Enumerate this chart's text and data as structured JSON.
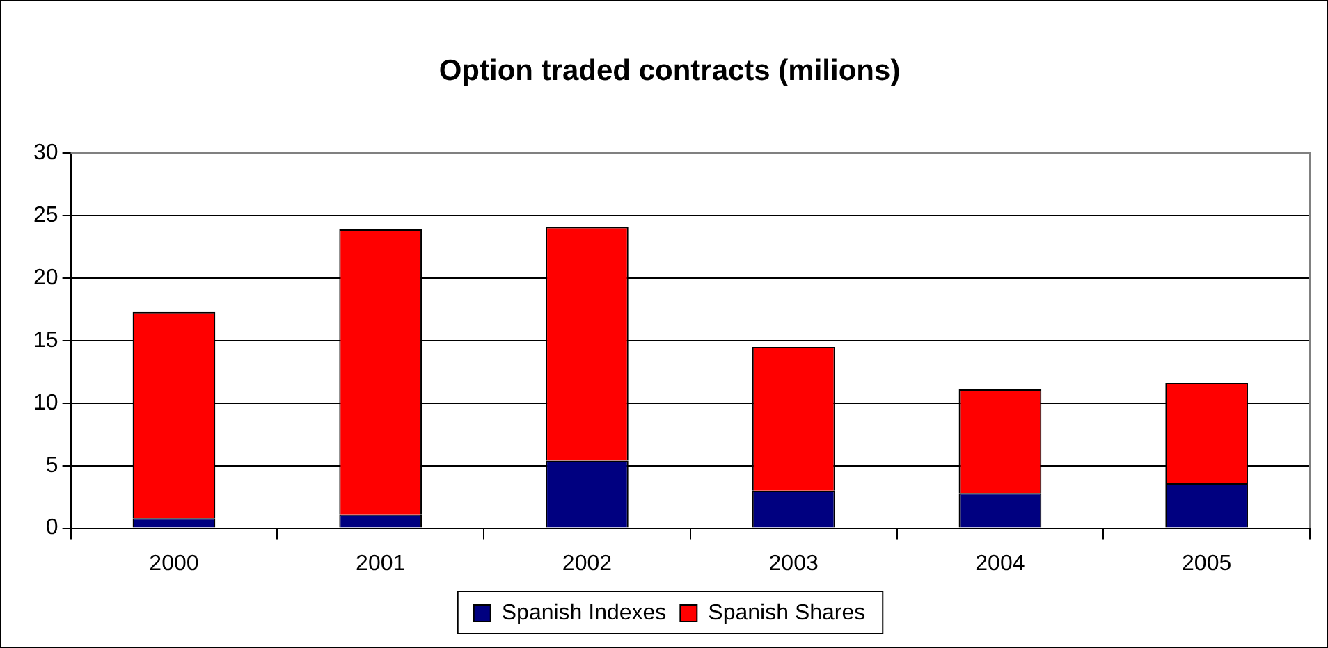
{
  "chart_data": {
    "type": "bar",
    "title": "Option traded contracts (milions)",
    "categories": [
      "2000",
      "2001",
      "2002",
      "2003",
      "2004",
      "2005"
    ],
    "stacked": true,
    "series": [
      {
        "name": "Spanish Indexes",
        "color": "#000080",
        "values": [
          0.8,
          1.1,
          5.4,
          3.0,
          2.8,
          3.6
        ]
      },
      {
        "name": "Spanish Shares",
        "color": "#ff0000",
        "values": [
          16.5,
          22.8,
          18.7,
          11.5,
          8.3,
          8.0
        ]
      }
    ],
    "ylim": [
      0,
      30
    ],
    "yticks": [
      0,
      5,
      10,
      15,
      20,
      25,
      30
    ],
    "grid": "y",
    "legend": "bottom"
  }
}
